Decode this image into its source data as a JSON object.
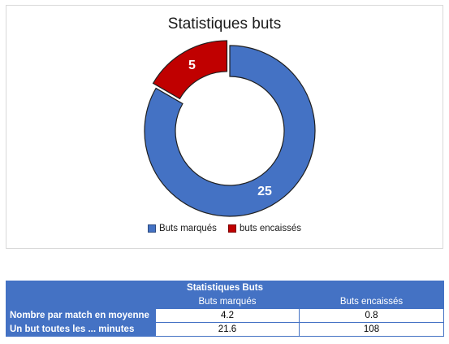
{
  "chart_data": {
    "type": "pie",
    "title": "Statistiques buts",
    "categories": [
      "Buts marqués",
      "buts encaissés"
    ],
    "values": [
      25,
      5
    ],
    "colors": [
      "#4472c4",
      "#c00000"
    ],
    "legend_position": "bottom"
  },
  "table": {
    "title": "Statistiques Buts",
    "headers": [
      "",
      "Buts marqués",
      "Buts encaissés"
    ],
    "rows": [
      {
        "label": "Nombre par match en moyenne",
        "values": [
          "4.2",
          "0.8"
        ]
      },
      {
        "label": "Un but toutes les ... minutes",
        "values": [
          "21.6",
          "108"
        ]
      }
    ]
  }
}
